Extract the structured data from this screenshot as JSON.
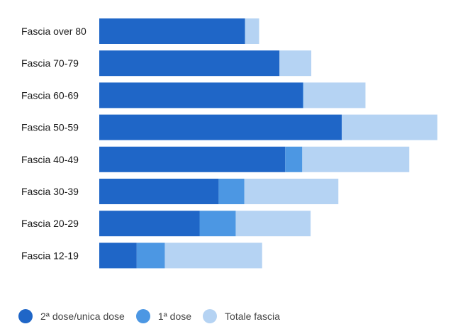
{
  "chart_data": {
    "type": "bar",
    "orientation": "horizontal",
    "stacked": true,
    "categories": [
      "Fascia over 80",
      "Fascia 70-79",
      "Fascia 60-69",
      "Fascia 50-59",
      "Fascia 40-49",
      "Fascia 30-39",
      "Fascia 20-29",
      "Fascia 12-19"
    ],
    "series": [
      {
        "name": "2ª dose/unica dose",
        "color": "#1f66c7",
        "values": [
          4.36,
          5.39,
          6.09,
          7.25,
          5.56,
          3.57,
          3.0,
          1.12
        ]
      },
      {
        "name": "1ª dose",
        "color": "#4c97e3",
        "values": [
          0.0,
          0.0,
          0.02,
          0.0,
          0.51,
          0.77,
          1.08,
          0.84
        ]
      },
      {
        "name": "Totale fascia",
        "color": "#b5d3f3",
        "values": [
          0.42,
          0.95,
          1.85,
          2.86,
          3.2,
          2.81,
          2.24,
          2.91
        ]
      }
    ],
    "xlim": [
      0,
      10.6
    ],
    "grid": false,
    "legend_position": "bottom-left"
  }
}
